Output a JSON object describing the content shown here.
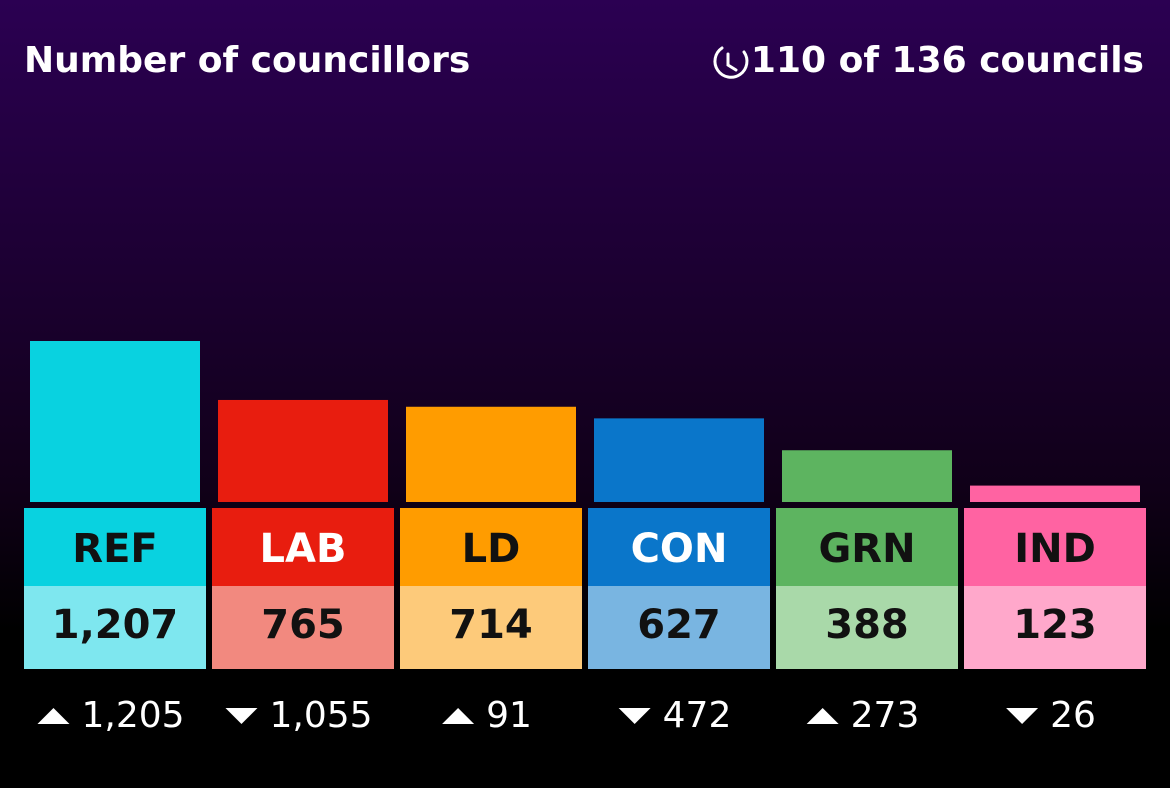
{
  "chart_data": {
    "type": "bar",
    "title": "Number of councillors",
    "progress": "110 of 136 councils",
    "categories": [
      "REF",
      "LAB",
      "LD",
      "CON",
      "GRN",
      "IND"
    ],
    "values": [
      1207,
      765,
      714,
      627,
      388,
      123
    ],
    "value_labels": [
      "1,207",
      "765",
      "714",
      "627",
      "388",
      "123"
    ],
    "changes": [
      1205,
      -1055,
      91,
      -472,
      273,
      -26
    ],
    "change_labels": [
      "1,205",
      "1,055",
      "91",
      "472",
      "273",
      "26"
    ],
    "colors": [
      "#09d2e0",
      "#e81d0f",
      "#ff9c00",
      "#0a76ca",
      "#5db460",
      "#ff63a2"
    ],
    "light_colors": [
      "#7ee7ef",
      "#f2897f",
      "#fdca7a",
      "#79b5e1",
      "#a9d9a9",
      "#ffa8cb"
    ],
    "label_text_colors": [
      "#111111",
      "#ffffff",
      "#111111",
      "#ffffff",
      "#111111",
      "#111111"
    ]
  }
}
